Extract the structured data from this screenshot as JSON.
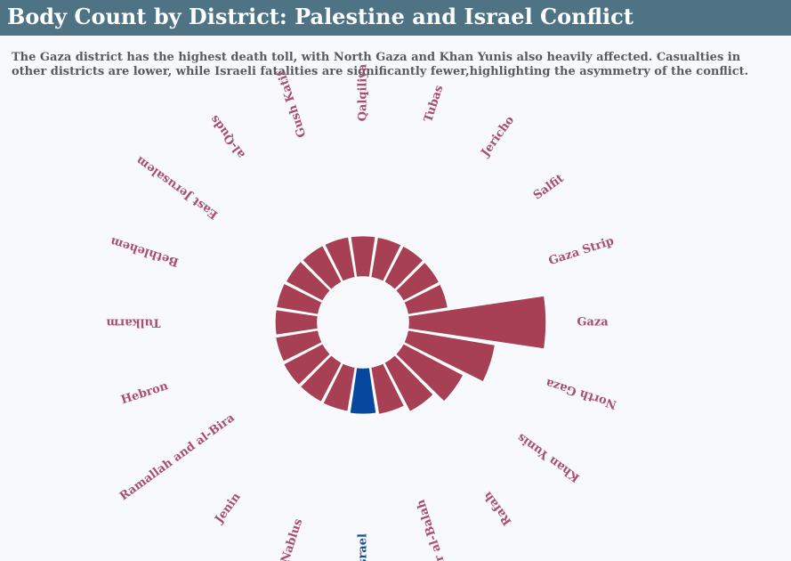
{
  "chart_data": {
    "type": "polar-bar",
    "title": "Body Count by District: Palestine and Israel Conflict",
    "subtitle": "The Gaza district has the highest death toll, with North Gaza and Khan Yunis also heavily affected. Casualties in other districts are lower, while Israeli fatalities are significantly fewer,highlighting the asymmetry of the conflict.",
    "categories": [
      "Gaza",
      "North Gaza",
      "Khan Yunis",
      "Rafah",
      "Deir al-Balah",
      "Israel",
      "Nablus",
      "Jenin",
      "Ramallah and al-Bira",
      "Hebron",
      "Tulkarm",
      "Bethlehem",
      "East Jerusalem",
      "al-Quds",
      "Gush Katif",
      "Qalqiliya",
      "Tubas",
      "Jericho",
      "Salfit",
      "Gaza Strip"
    ],
    "values": [
      2800,
      1500,
      950,
      620,
      420,
      380,
      340,
      330,
      330,
      300,
      280,
      280,
      260,
      250,
      245,
      240,
      235,
      235,
      230,
      230
    ],
    "series_colors": {
      "palestine": "#a84055",
      "israel": "#08479e"
    },
    "label_colors": {
      "palestine": "#a84e72",
      "israel": "#1f4e8c"
    },
    "highlight": "Israel",
    "scale": "relative"
  }
}
